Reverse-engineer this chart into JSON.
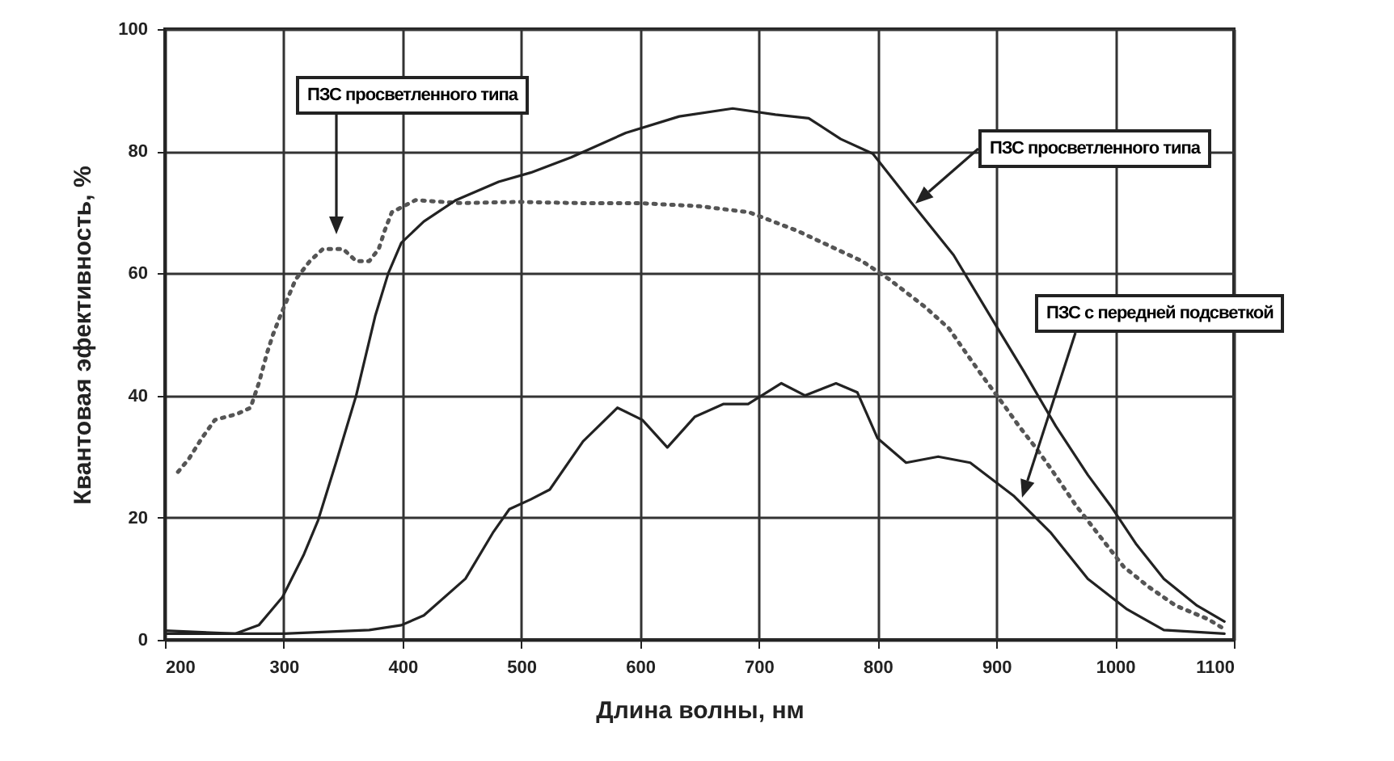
{
  "chart_data": {
    "type": "line",
    "xlabel": "Длина волны, нм",
    "ylabel": "Квантовая эфективность, %",
    "x": [
      211,
      220,
      231,
      242,
      261,
      272,
      279,
      286,
      291,
      297,
      310,
      322,
      333,
      350,
      361,
      372,
      380,
      385,
      391,
      411,
      450,
      497,
      550,
      600,
      650,
      692,
      732,
      787,
      810,
      840,
      860,
      878,
      889,
      908,
      919,
      933,
      946,
      967,
      987,
      1007,
      1028,
      1051,
      1078,
      1090
    ],
    "series": [
      {
        "color": "#555555",
        "line_style": "dotted",
        "values": [
          27.5,
          29.6,
          33,
          36,
          37,
          38,
          42,
          47,
          50,
          53,
          59,
          62,
          64,
          64,
          62,
          62,
          64,
          67,
          70,
          72,
          71.5,
          71.7,
          71.5,
          71.5,
          71,
          70,
          67,
          62,
          59,
          54.5,
          51,
          46,
          43,
          38,
          35,
          31.5,
          28,
          22,
          17,
          12,
          8.7,
          5.6,
          3.4,
          2
        ]
      },
      {
        "color": "#222222",
        "line_style": "solid",
        "x": [
          200,
          259,
          279,
          299,
          317,
          329,
          344,
          361,
          377,
          388,
          399,
          418,
          445,
          481,
          508,
          542,
          588,
          633,
          678,
          714,
          742,
          769,
          796,
          828,
          864,
          898,
          923,
          950,
          977,
          996,
          1018,
          1041,
          1069,
          1092
        ],
        "values": [
          1.5,
          1,
          2.4,
          7,
          14,
          19.6,
          29,
          40,
          53,
          60,
          65,
          68.5,
          72,
          75,
          76.5,
          79,
          83,
          85.7,
          87,
          86,
          85.4,
          82,
          79.6,
          71.7,
          63,
          52,
          44,
          35,
          27,
          22,
          15.6,
          10,
          5.6,
          3
        ]
      },
      {
        "color": "#222222",
        "line_style": "solid",
        "x": [
          200,
          300,
          372,
          399,
          418,
          453,
          476,
          490,
          508,
          524,
          552,
          581,
          602,
          623,
          646,
          670,
          691,
          719,
          739,
          765,
          783,
          800,
          824,
          851,
          878,
          915,
          946,
          977,
          1010,
          1041,
          1092
        ],
        "values": [
          1,
          1,
          1.6,
          2.4,
          4,
          10,
          17.5,
          21.4,
          23,
          24.6,
          32.5,
          38,
          36,
          31.5,
          36.5,
          38.6,
          38.6,
          42,
          40,
          42,
          40.5,
          33,
          29,
          30,
          29,
          23.5,
          17.5,
          10,
          5,
          1.6,
          1
        ]
      }
    ],
    "xlim": [
      200,
      1100
    ],
    "xticks": [
      200,
      300,
      400,
      500,
      600,
      700,
      800,
      900,
      1000,
      1100
    ],
    "ylim": [
      0,
      100
    ],
    "yticks": [
      0,
      20,
      40,
      60,
      80,
      100
    ],
    "grid": true,
    "annotations": [
      "ПЗС просветленного типа",
      "ПЗС просветленного типа",
      "ПЗС с передней подсветкой"
    ]
  }
}
